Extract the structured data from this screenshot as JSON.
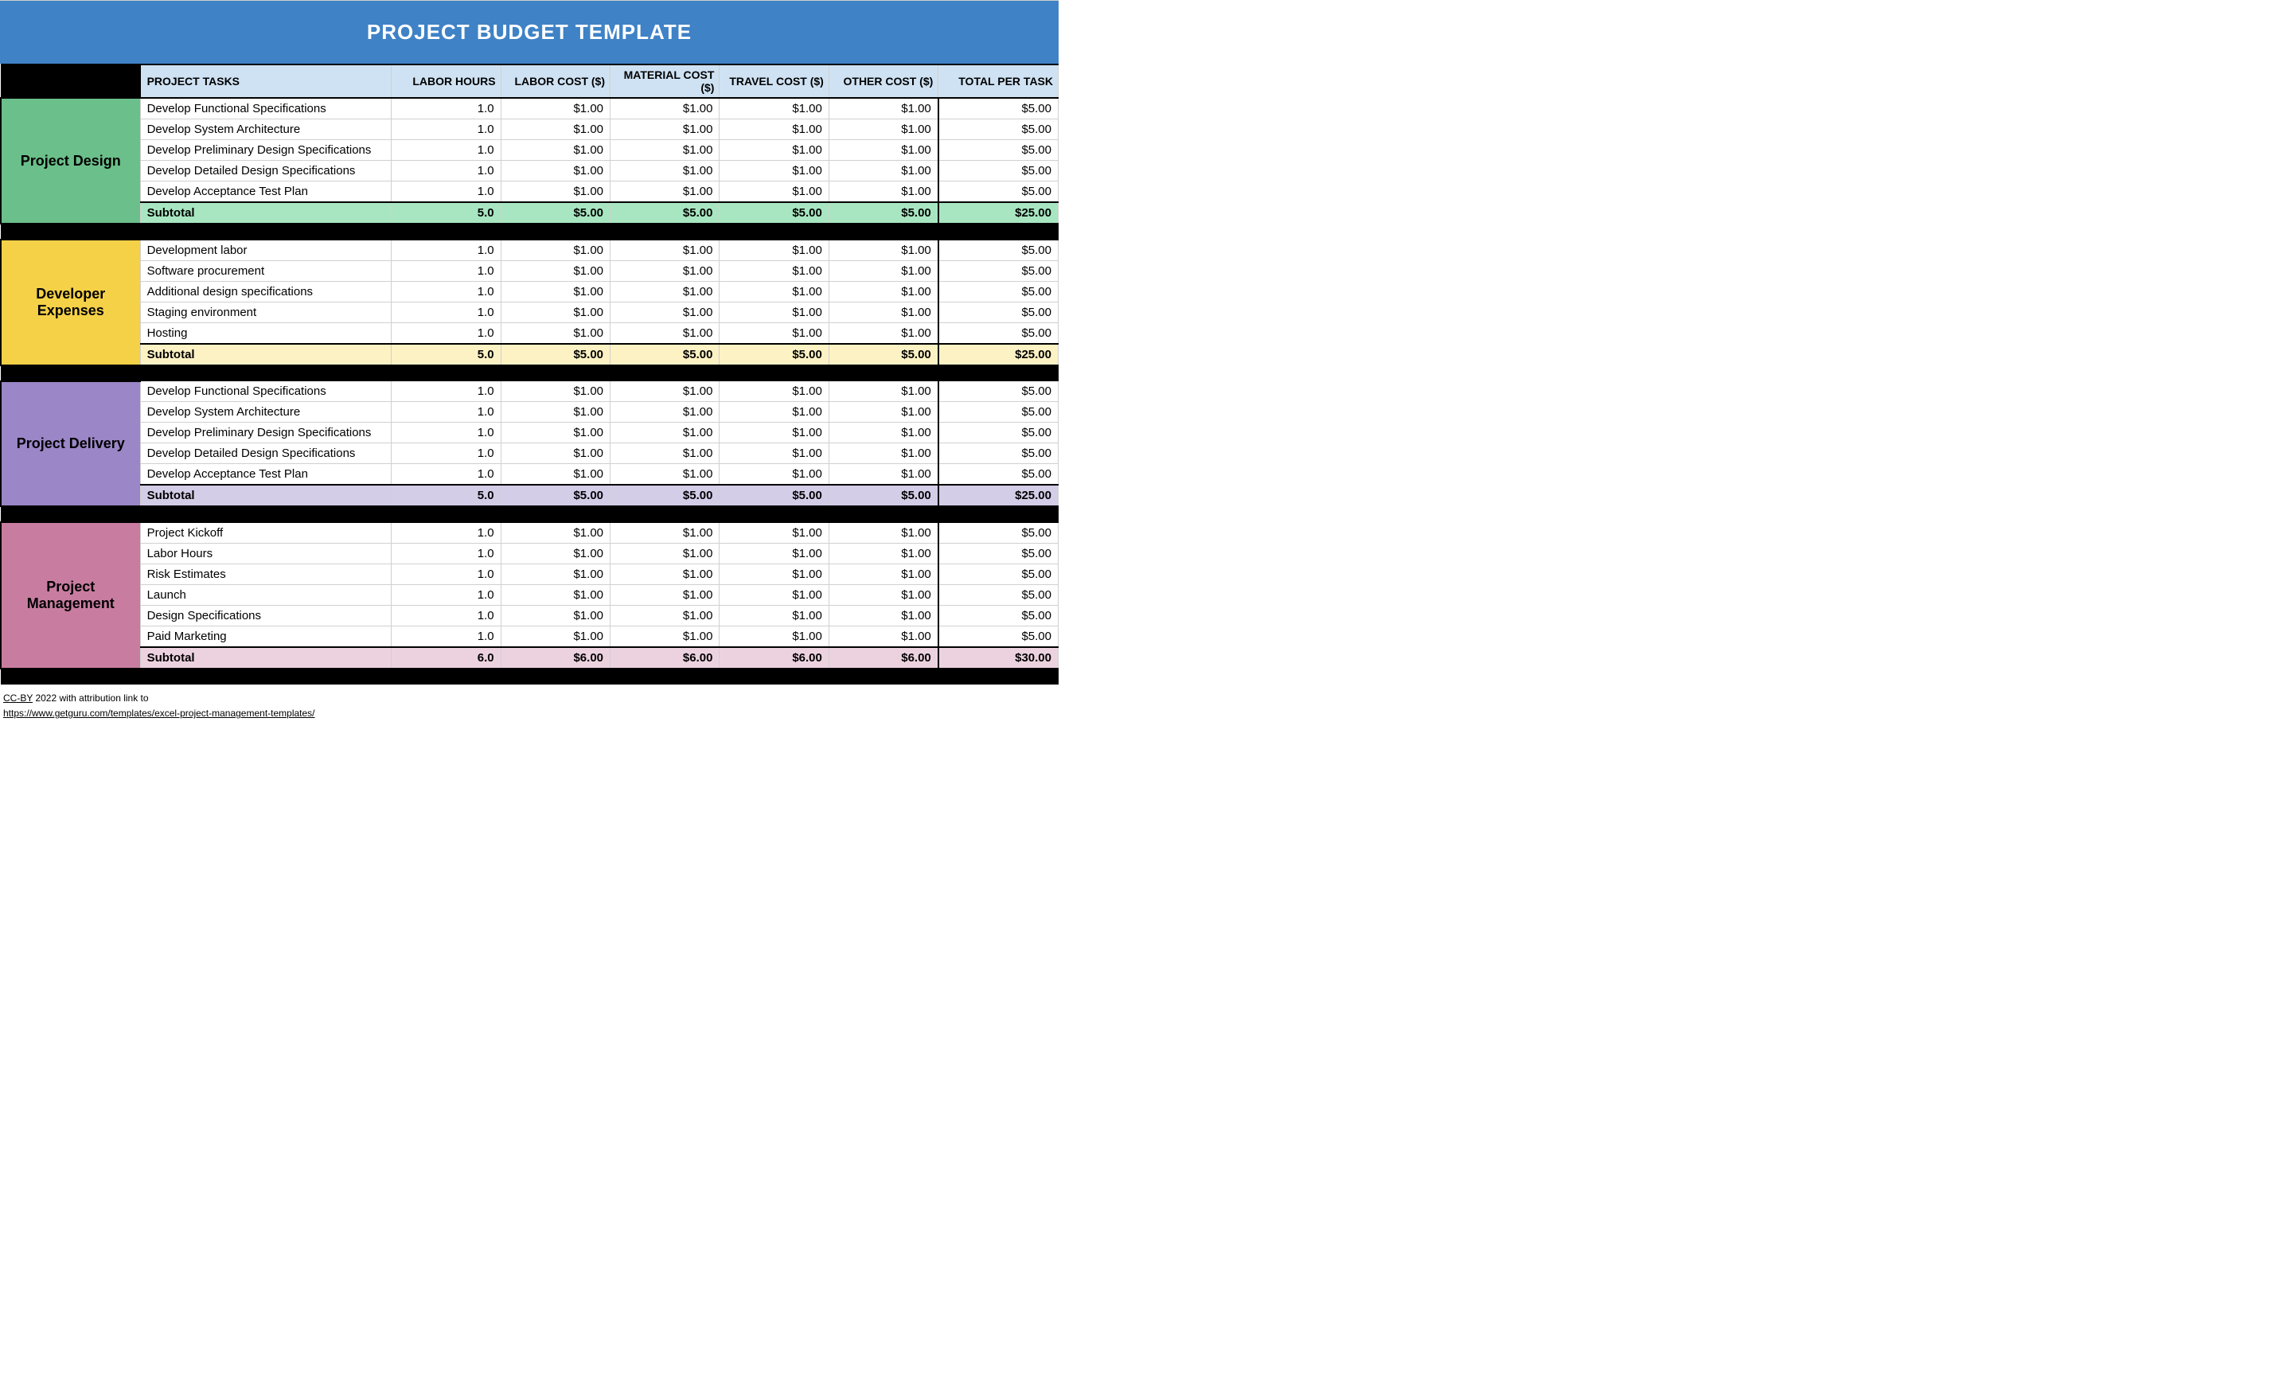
{
  "title": "PROJECT BUDGET TEMPLATE",
  "columns": {
    "tasks": "PROJECT TASKS",
    "labor_hours": "LABOR HOURS",
    "labor_cost": "LABOR COST ($)",
    "material_cost": "MATERIAL COST ($)",
    "travel_cost": "TRAVEL COST ($)",
    "other_cost": "OTHER COST ($)",
    "total_per_task": "TOTAL PER TASK"
  },
  "colors": {
    "title_bg": "#3f82c6",
    "header_bg": "#cfe2f3",
    "black": "#000000"
  },
  "sections": [
    {
      "name": "Project Design",
      "label_bg": "#6bbf8a",
      "subtotal_bg": "#a8e6c1",
      "tasks": [
        {
          "task": "Develop Functional Specifications",
          "hours": "1.0",
          "labor": "$1.00",
          "material": "$1.00",
          "travel": "$1.00",
          "other": "$1.00",
          "total": "$5.00"
        },
        {
          "task": "Develop System Architecture",
          "hours": "1.0",
          "labor": "$1.00",
          "material": "$1.00",
          "travel": "$1.00",
          "other": "$1.00",
          "total": "$5.00"
        },
        {
          "task": "Develop Preliminary Design Specifications",
          "hours": "1.0",
          "labor": "$1.00",
          "material": "$1.00",
          "travel": "$1.00",
          "other": "$1.00",
          "total": "$5.00"
        },
        {
          "task": "Develop Detailed Design Specifications",
          "hours": "1.0",
          "labor": "$1.00",
          "material": "$1.00",
          "travel": "$1.00",
          "other": "$1.00",
          "total": "$5.00"
        },
        {
          "task": "Develop Acceptance Test Plan",
          "hours": "1.0",
          "labor": "$1.00",
          "material": "$1.00",
          "travel": "$1.00",
          "other": "$1.00",
          "total": "$5.00"
        }
      ],
      "subtotal": {
        "label": "Subtotal",
        "hours": "5.0",
        "labor": "$5.00",
        "material": "$5.00",
        "travel": "$5.00",
        "other": "$5.00",
        "total": "$25.00"
      }
    },
    {
      "name": "Developer Expenses",
      "label_bg": "#f5d148",
      "subtotal_bg": "#fdf2c4",
      "tasks": [
        {
          "task": "Development labor",
          "hours": "1.0",
          "labor": "$1.00",
          "material": "$1.00",
          "travel": "$1.00",
          "other": "$1.00",
          "total": "$5.00"
        },
        {
          "task": "Software procurement",
          "hours": "1.0",
          "labor": "$1.00",
          "material": "$1.00",
          "travel": "$1.00",
          "other": "$1.00",
          "total": "$5.00"
        },
        {
          "task": "Additional design specifications",
          "hours": "1.0",
          "labor": "$1.00",
          "material": "$1.00",
          "travel": "$1.00",
          "other": "$1.00",
          "total": "$5.00"
        },
        {
          "task": "Staging environment",
          "hours": "1.0",
          "labor": "$1.00",
          "material": "$1.00",
          "travel": "$1.00",
          "other": "$1.00",
          "total": "$5.00"
        },
        {
          "task": "Hosting",
          "hours": "1.0",
          "labor": "$1.00",
          "material": "$1.00",
          "travel": "$1.00",
          "other": "$1.00",
          "total": "$5.00"
        }
      ],
      "subtotal": {
        "label": "Subtotal",
        "hours": "5.0",
        "labor": "$5.00",
        "material": "$5.00",
        "travel": "$5.00",
        "other": "$5.00",
        "total": "$25.00"
      }
    },
    {
      "name": "Project Delivery",
      "label_bg": "#9b86c7",
      "subtotal_bg": "#d4cde8",
      "tasks": [
        {
          "task": "Develop Functional Specifications",
          "hours": "1.0",
          "labor": "$1.00",
          "material": "$1.00",
          "travel": "$1.00",
          "other": "$1.00",
          "total": "$5.00"
        },
        {
          "task": "Develop System Architecture",
          "hours": "1.0",
          "labor": "$1.00",
          "material": "$1.00",
          "travel": "$1.00",
          "other": "$1.00",
          "total": "$5.00"
        },
        {
          "task": "Develop Preliminary Design Specifications",
          "hours": "1.0",
          "labor": "$1.00",
          "material": "$1.00",
          "travel": "$1.00",
          "other": "$1.00",
          "total": "$5.00"
        },
        {
          "task": "Develop Detailed Design Specifications",
          "hours": "1.0",
          "labor": "$1.00",
          "material": "$1.00",
          "travel": "$1.00",
          "other": "$1.00",
          "total": "$5.00"
        },
        {
          "task": "Develop Acceptance Test Plan",
          "hours": "1.0",
          "labor": "$1.00",
          "material": "$1.00",
          "travel": "$1.00",
          "other": "$1.00",
          "total": "$5.00"
        }
      ],
      "subtotal": {
        "label": "Subtotal",
        "hours": "5.0",
        "labor": "$5.00",
        "material": "$5.00",
        "travel": "$5.00",
        "other": "$5.00",
        "total": "$25.00"
      }
    },
    {
      "name": "Project Management",
      "label_bg": "#c87da0",
      "subtotal_bg": "#ecd2df",
      "tasks": [
        {
          "task": "Project Kickoff",
          "hours": "1.0",
          "labor": "$1.00",
          "material": "$1.00",
          "travel": "$1.00",
          "other": "$1.00",
          "total": "$5.00"
        },
        {
          "task": "Labor Hours",
          "hours": "1.0",
          "labor": "$1.00",
          "material": "$1.00",
          "travel": "$1.00",
          "other": "$1.00",
          "total": "$5.00"
        },
        {
          "task": "Risk Estimates",
          "hours": "1.0",
          "labor": "$1.00",
          "material": "$1.00",
          "travel": "$1.00",
          "other": "$1.00",
          "total": "$5.00"
        },
        {
          "task": "Launch",
          "hours": "1.0",
          "labor": "$1.00",
          "material": "$1.00",
          "travel": "$1.00",
          "other": "$1.00",
          "total": "$5.00"
        },
        {
          "task": "Design Specifications",
          "hours": "1.0",
          "labor": "$1.00",
          "material": "$1.00",
          "travel": "$1.00",
          "other": "$1.00",
          "total": "$5.00"
        },
        {
          "task": "Paid Marketing",
          "hours": "1.0",
          "labor": "$1.00",
          "material": "$1.00",
          "travel": "$1.00",
          "other": "$1.00",
          "total": "$5.00"
        }
      ],
      "subtotal": {
        "label": "Subtotal",
        "hours": "6.0",
        "labor": "$6.00",
        "material": "$6.00",
        "travel": "$6.00",
        "other": "$6.00",
        "total": "$30.00"
      }
    }
  ],
  "footer": {
    "license_link_text": "CC-BY",
    "license_rest": " 2022 with attribution link to",
    "url_text": "https://www.getguru.com/templates/excel-project-management-templates/"
  }
}
